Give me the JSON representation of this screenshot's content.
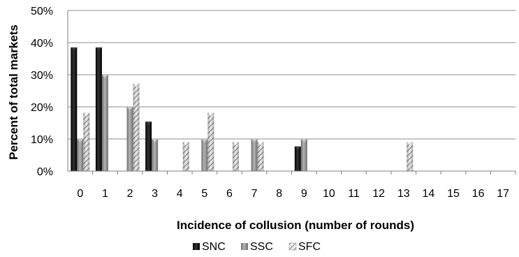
{
  "chart_data": {
    "type": "bar",
    "title": "",
    "xlabel": "Incidence of collusion (number of rounds)",
    "ylabel": "Percent of total markets",
    "categories": [
      "0",
      "1",
      "2",
      "3",
      "4",
      "5",
      "6",
      "7",
      "8",
      "9",
      "10",
      "11",
      "12",
      "13",
      "14",
      "15",
      "16",
      "17"
    ],
    "ylim": [
      0,
      50
    ],
    "yticks": [
      "0%",
      "10%",
      "20%",
      "30%",
      "40%",
      "50%"
    ],
    "grid": true,
    "legend_position": "bottom",
    "series": [
      {
        "name": "SNC",
        "color": "#111111",
        "values": [
          38.5,
          38.5,
          0,
          15.4,
          0,
          0,
          0,
          0,
          0,
          7.7,
          0,
          0,
          0,
          0,
          0,
          0,
          0,
          0
        ]
      },
      {
        "name": "SSC",
        "color": "#8a8a8a",
        "values": [
          10,
          30,
          20,
          10,
          0,
          10,
          0,
          10,
          0,
          10,
          0,
          0,
          0,
          0,
          0,
          0,
          0,
          0
        ]
      },
      {
        "name": "SFC",
        "color": "#c4c4c4",
        "values": [
          18.2,
          0,
          27.3,
          0,
          9.1,
          18.2,
          9.1,
          9.1,
          0,
          0,
          0,
          0,
          0,
          9.1,
          0,
          0,
          0,
          0
        ]
      }
    ]
  }
}
